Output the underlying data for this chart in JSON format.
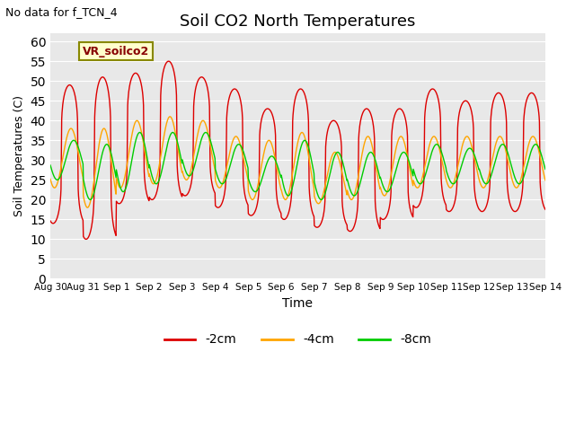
{
  "title": "Soil CO2 North Temperatures",
  "xlabel": "Time",
  "ylabel": "Soil Temperatures (C)",
  "no_data_text": "No data for f_TCN_4",
  "annotation_text": "VR_soilco2",
  "ylim": [
    0,
    62
  ],
  "yticks": [
    0,
    5,
    10,
    15,
    20,
    25,
    30,
    35,
    40,
    45,
    50,
    55,
    60
  ],
  "line_colors": [
    "#dd0000",
    "#ffa500",
    "#00cc00"
  ],
  "line_labels": [
    "-2cm",
    "-4cm",
    "-8cm"
  ],
  "bg_color": "#e8e8e8",
  "fig_bg_color": "#ffffff",
  "tick_dates": [
    "Aug 30",
    "Aug 31",
    "Sep 1",
    "Sep 2",
    "Sep 3",
    "Sep 4",
    "Sep 5",
    "Sep 6",
    "Sep 7",
    "Sep 8",
    "Sep 9",
    "Sep 10",
    "Sep 11",
    "Sep 12",
    "Sep 13",
    "Sep 14"
  ],
  "red_peaks": [
    49,
    51,
    52,
    55,
    51,
    48,
    43,
    48,
    40,
    43,
    43,
    48,
    45,
    47,
    47
  ],
  "red_troughs": [
    14,
    10,
    19,
    20,
    21,
    18,
    16,
    15,
    13,
    12,
    15,
    18,
    17,
    17,
    17
  ],
  "orange_peaks": [
    38,
    38,
    40,
    41,
    40,
    36,
    35,
    37,
    32,
    36,
    36,
    36,
    36,
    36,
    36
  ],
  "orange_troughs": [
    23,
    18,
    23,
    24,
    25,
    23,
    20,
    20,
    19,
    20,
    21,
    23,
    23,
    23,
    23
  ],
  "green_peaks": [
    35,
    34,
    37,
    37,
    37,
    34,
    31,
    35,
    32,
    32,
    32,
    34,
    33,
    34,
    34
  ],
  "green_troughs": [
    25,
    20,
    22,
    24,
    26,
    24,
    22,
    21,
    20,
    21,
    22,
    24,
    24,
    24,
    24
  ],
  "red_peak_hour": 14,
  "orange_peak_hour": 15,
  "green_peak_hour": 17,
  "red_sharp": 4.0,
  "orange_sharp": 1.0,
  "green_sharp": 1.0
}
